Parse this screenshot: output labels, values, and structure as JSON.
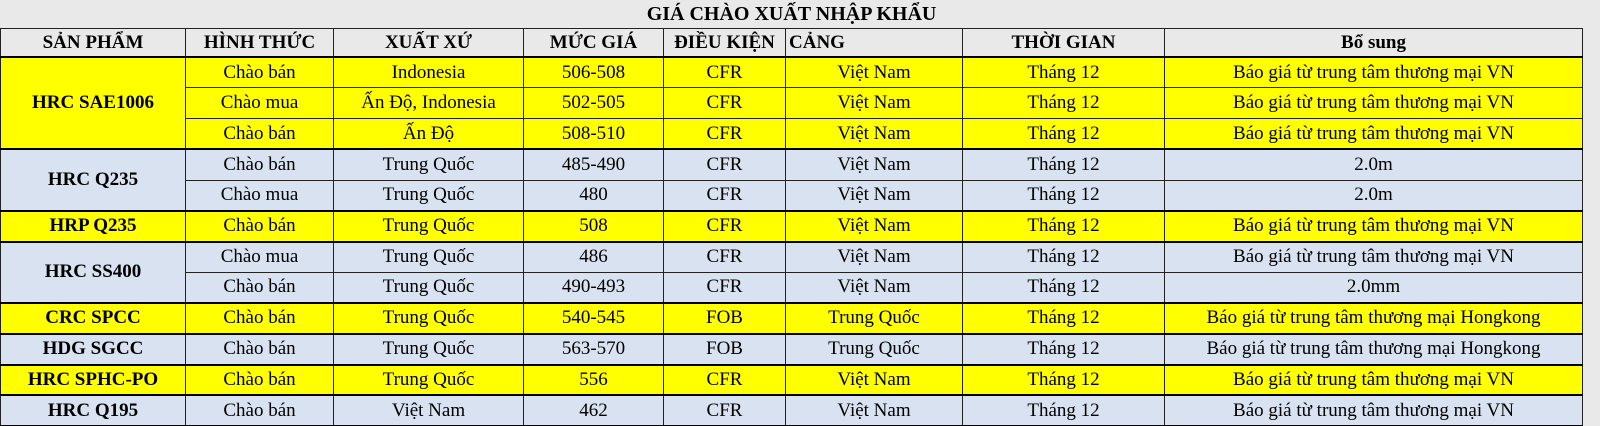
{
  "table": {
    "title": "GIÁ CHÀO XUẤT NHẬP KHẨU",
    "columns": {
      "product": "SẢN PHẨM",
      "form": "HÌNH THỨC",
      "origin": "XUẤT XỨ",
      "price": "MỨC GIÁ",
      "condition": "ĐIỀU KIỆN",
      "port": "CẢNG",
      "time": "THỜI GIAN",
      "extra": "Bổ sung"
    },
    "colors": {
      "yellow": "#FFFF00",
      "blue": "#D9E2F0",
      "header_bg": "#E9E9E9",
      "border": "#222222"
    },
    "groups": [
      {
        "product": "HRC SAE1006",
        "color": "yellow",
        "rows": [
          [
            "Chào bán",
            "Indonesia",
            "506-508",
            "CFR",
            "Việt Nam",
            "Tháng 12",
            "Báo giá từ trung tâm thương mại VN"
          ],
          [
            "Chào mua",
            "Ấn Độ, Indonesia",
            "502-505",
            "CFR",
            "Việt Nam",
            "Tháng 12",
            "Báo giá từ trung tâm thương mại VN"
          ],
          [
            "Chào bán",
            "Ấn Độ",
            "508-510",
            "CFR",
            "Việt Nam",
            "Tháng 12",
            "Báo giá từ trung tâm thương mại VN"
          ]
        ]
      },
      {
        "product": "HRC Q235",
        "color": "blue",
        "rows": [
          [
            "Chào bán",
            "Trung Quốc",
            "485-490",
            "CFR",
            "Việt Nam",
            "Tháng 12",
            "2.0m"
          ],
          [
            "Chào mua",
            "Trung Quốc",
            "480",
            "CFR",
            "Việt Nam",
            "Tháng 12",
            "2.0m"
          ]
        ]
      },
      {
        "product": "HRP Q235",
        "color": "yellow",
        "rows": [
          [
            "Chào bán",
            "Trung Quốc",
            "508",
            "CFR",
            "Việt Nam",
            "Tháng 12",
            "Báo giá từ trung tâm thương mại VN"
          ]
        ]
      },
      {
        "product": "HRC SS400",
        "color": "blue",
        "rows": [
          [
            "Chào mua",
            "Trung Quốc",
            "486",
            "CFR",
            "Việt Nam",
            "Tháng 12",
            "Báo giá từ trung tâm thương mại VN"
          ],
          [
            "Chào bán",
            "Trung Quốc",
            "490-493",
            "CFR",
            "Việt Nam",
            "Tháng 12",
            "2.0mm"
          ]
        ]
      },
      {
        "product": "CRC SPCC",
        "color": "yellow",
        "rows": [
          [
            "Chào bán",
            "Trung Quốc",
            "540-545",
            "FOB",
            "Trung Quốc",
            "Tháng 12",
            "Báo giá từ trung tâm thương mại Hongkong"
          ]
        ]
      },
      {
        "product": "HDG SGCC",
        "color": "blue",
        "rows": [
          [
            "Chào bán",
            "Trung Quốc",
            "563-570",
            "FOB",
            "Trung Quốc",
            "Tháng 12",
            "Báo giá từ trung tâm thương mại Hongkong"
          ]
        ]
      },
      {
        "product": "HRC SPHC-PO",
        "color": "yellow",
        "rows": [
          [
            "Chào bán",
            "Trung Quốc",
            "556",
            "CFR",
            "Việt Nam",
            "Tháng 12",
            "Báo giá từ trung tâm thương mại VN"
          ]
        ]
      },
      {
        "product": "HRC Q195",
        "color": "blue",
        "rows": [
          [
            "Chào bán",
            "Việt Nam",
            "462",
            "CFR",
            "Việt Nam",
            "Tháng 12",
            "Báo giá từ trung tâm thương mại VN"
          ]
        ]
      }
    ]
  }
}
